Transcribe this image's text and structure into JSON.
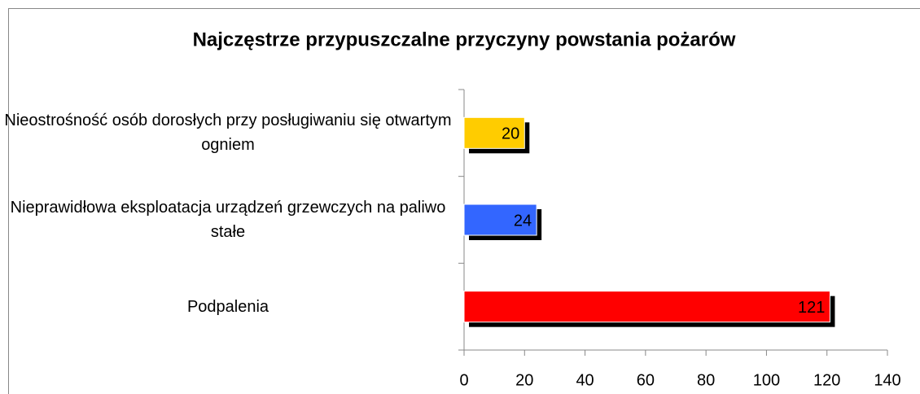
{
  "chart_data": {
    "type": "bar",
    "orientation": "horizontal",
    "title": "Najczęstrze przypuszczalne przyczyny powstania pożarów",
    "categories": [
      "Nieostrośność osób dorosłych przy posługiwaniu się otwartym ogniem",
      "Nieprawidłowa eksploatacja urządzeń grzewczych na paliwo stałe",
      "Podpalenia"
    ],
    "values": [
      20,
      24,
      121
    ],
    "colors": [
      "#ffcc00",
      "#3366ff",
      "#ff0000"
    ],
    "xlim": [
      0,
      140
    ],
    "xticks": [
      0,
      20,
      40,
      60,
      80,
      100,
      120,
      140
    ]
  }
}
